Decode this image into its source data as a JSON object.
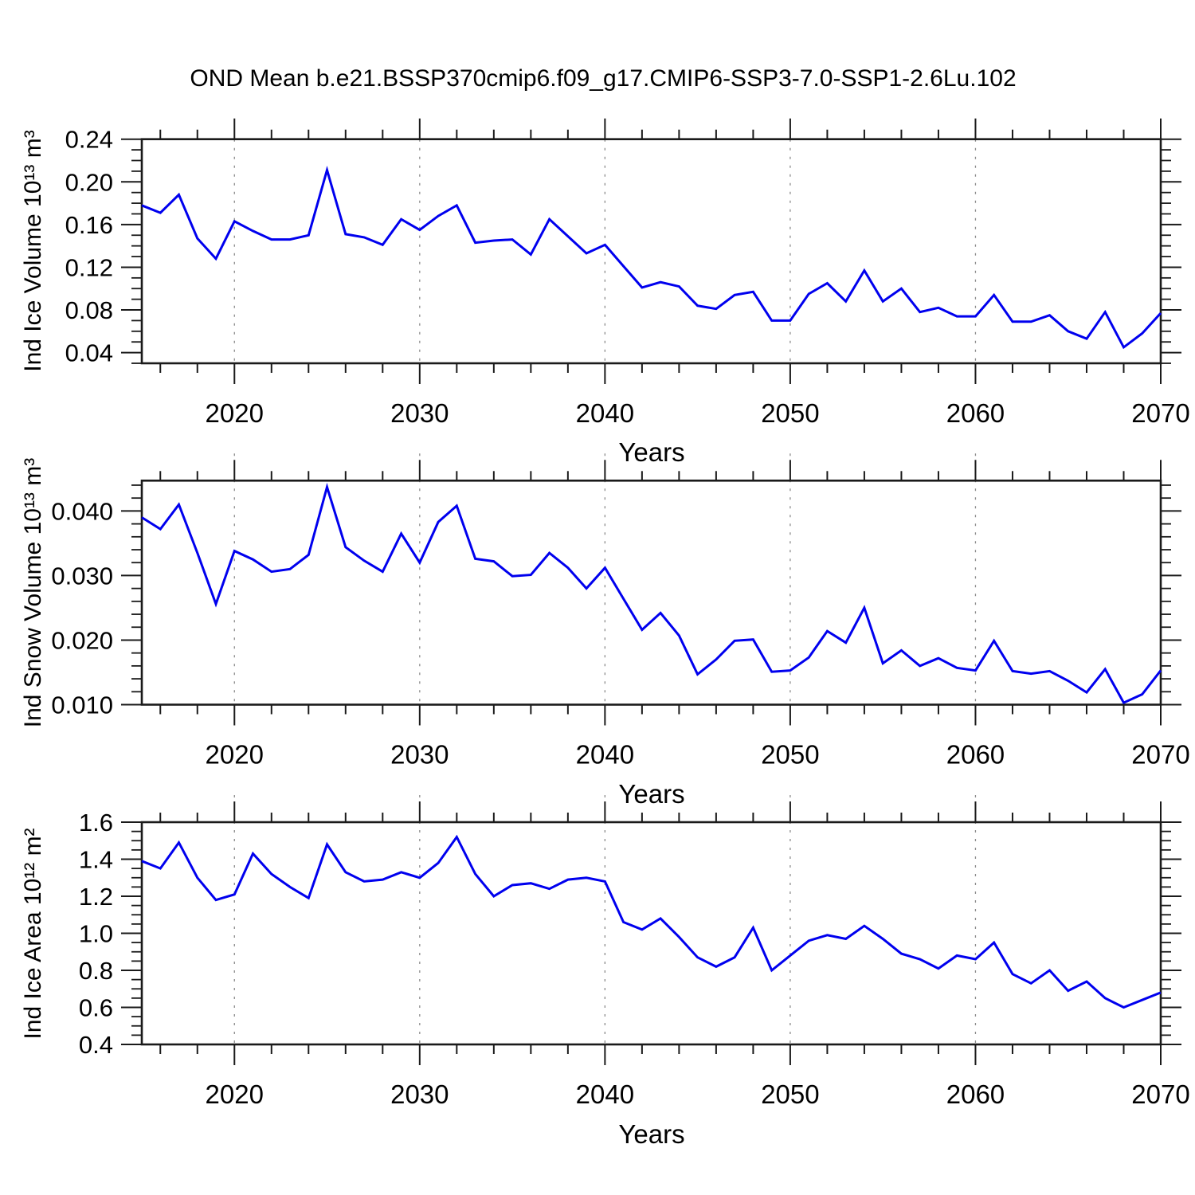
{
  "title": "OND Mean b.e21.BSSP370cmip6.f09_g17.CMIP6-SSP3-7.0-SSP1-2.6Lu.102",
  "colors": {
    "line": "#0000ee",
    "frame": "#1a1a1a",
    "grid": "#8a8a8a",
    "text": "#000000",
    "background": "#ffffff"
  },
  "years": [
    2015,
    2016,
    2017,
    2018,
    2019,
    2020,
    2021,
    2022,
    2023,
    2024,
    2025,
    2026,
    2027,
    2028,
    2029,
    2030,
    2031,
    2032,
    2033,
    2034,
    2035,
    2036,
    2037,
    2038,
    2039,
    2040,
    2041,
    2042,
    2043,
    2044,
    2045,
    2046,
    2047,
    2048,
    2049,
    2050,
    2051,
    2052,
    2053,
    2054,
    2055,
    2056,
    2057,
    2058,
    2059,
    2060,
    2061,
    2062,
    2063,
    2064,
    2065,
    2066,
    2067,
    2068,
    2069,
    2070
  ],
  "chart_data": [
    {
      "type": "line",
      "name": "ind-ice-volume",
      "ylabel": "Ind Ice Volume 10¹³ m³",
      "xlabel": "Years",
      "xlim": [
        2015,
        2070
      ],
      "ylim": [
        0.03,
        0.24
      ],
      "x_major_ticks": [
        2020,
        2030,
        2040,
        2050,
        2060,
        2070
      ],
      "x_minor_step": 2,
      "gridline_years": [
        2020,
        2030,
        2040,
        2050,
        2060
      ],
      "grid_style": "vertical-dashed",
      "y_major_ticks": [
        0.04,
        0.08,
        0.12,
        0.16,
        0.2,
        0.24
      ],
      "y_tick_labels": [
        "0.04",
        "0.08",
        "0.12",
        "0.16",
        "0.20",
        "0.24"
      ],
      "y_minor_step": 0.01,
      "x_years": {
        "start": 2015,
        "end": 2070,
        "step": 1
      },
      "values": [
        0.178,
        0.171,
        0.188,
        0.147,
        0.128,
        0.163,
        0.154,
        0.146,
        0.146,
        0.15,
        0.211,
        0.151,
        0.148,
        0.141,
        0.165,
        0.155,
        0.168,
        0.178,
        0.143,
        0.145,
        0.146,
        0.132,
        0.165,
        0.149,
        0.133,
        0.141,
        0.121,
        0.101,
        0.106,
        0.102,
        0.084,
        0.081,
        0.094,
        0.097,
        0.07,
        0.07,
        0.095,
        0.105,
        0.088,
        0.117,
        0.088,
        0.1,
        0.078,
        0.082,
        0.074,
        0.074,
        0.094,
        0.069,
        0.069,
        0.075,
        0.06,
        0.053,
        0.078,
        0.045,
        0.058,
        0.077
      ]
    },
    {
      "type": "line",
      "name": "ind-snow-volume",
      "ylabel": "Ind Snow Volume 10¹³ m³",
      "xlabel": "Years",
      "xlim": [
        2015,
        2070
      ],
      "ylim": [
        0.01,
        0.0447
      ],
      "x_major_ticks": [
        2020,
        2030,
        2040,
        2050,
        2060,
        2070
      ],
      "x_minor_step": 2,
      "gridline_years": [
        2020,
        2030,
        2040,
        2050,
        2060
      ],
      "grid_style": "vertical-dashed",
      "y_major_ticks": [
        0.01,
        0.02,
        0.03,
        0.04
      ],
      "y_tick_labels": [
        "0.010",
        "0.020",
        "0.030",
        "0.040"
      ],
      "y_minor_step": 0.002,
      "x_years": {
        "start": 2015,
        "end": 2070,
        "step": 1
      },
      "values": [
        0.039,
        0.0372,
        0.041,
        0.0335,
        0.0256,
        0.0338,
        0.0325,
        0.0306,
        0.031,
        0.0332,
        0.0437,
        0.0344,
        0.0323,
        0.0306,
        0.0365,
        0.032,
        0.0383,
        0.0408,
        0.0326,
        0.0322,
        0.0299,
        0.0301,
        0.0335,
        0.0312,
        0.028,
        0.0312,
        0.0264,
        0.0216,
        0.0242,
        0.0207,
        0.0147,
        0.017,
        0.0199,
        0.0201,
        0.0151,
        0.0153,
        0.0173,
        0.0214,
        0.0196,
        0.025,
        0.0164,
        0.0184,
        0.016,
        0.0172,
        0.0157,
        0.0153,
        0.0199,
        0.0152,
        0.0148,
        0.0152,
        0.0137,
        0.0119,
        0.0155,
        0.0103,
        0.0116,
        0.0153
      ]
    },
    {
      "type": "line",
      "name": "ind-ice-area",
      "ylabel": "Ind Ice Area 10¹² m²",
      "xlabel": "Years",
      "xlim": [
        2015,
        2070
      ],
      "ylim": [
        0.4,
        1.6
      ],
      "x_major_ticks": [
        2020,
        2030,
        2040,
        2050,
        2060,
        2070
      ],
      "x_minor_step": 2,
      "gridline_years": [
        2020,
        2030,
        2040,
        2050,
        2060
      ],
      "grid_style": "vertical-dashed",
      "y_major_ticks": [
        0.4,
        0.6,
        0.8,
        1.0,
        1.2,
        1.4,
        1.6
      ],
      "y_tick_labels": [
        "0.4",
        "0.6",
        "0.8",
        "1.0",
        "1.2",
        "1.4",
        "1.6"
      ],
      "y_minor_step": 0.05,
      "x_years": {
        "start": 2015,
        "end": 2070,
        "step": 1
      },
      "values": [
        1.39,
        1.35,
        1.49,
        1.3,
        1.18,
        1.21,
        1.43,
        1.32,
        1.25,
        1.19,
        1.48,
        1.33,
        1.28,
        1.29,
        1.33,
        1.3,
        1.38,
        1.52,
        1.32,
        1.2,
        1.26,
        1.27,
        1.24,
        1.29,
        1.3,
        1.28,
        1.06,
        1.02,
        1.08,
        0.98,
        0.87,
        0.82,
        0.87,
        1.03,
        0.8,
        0.88,
        0.96,
        0.99,
        0.97,
        1.04,
        0.97,
        0.89,
        0.86,
        0.81,
        0.88,
        0.86,
        0.95,
        0.78,
        0.73,
        0.8,
        0.69,
        0.74,
        0.65,
        0.6,
        0.64,
        0.68
      ]
    }
  ]
}
